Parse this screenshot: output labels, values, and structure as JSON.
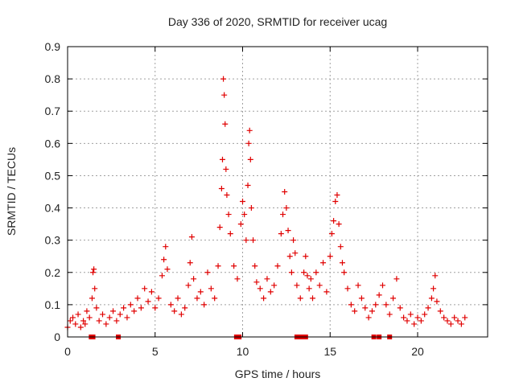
{
  "chart_data": {
    "type": "scatter",
    "title": "Day 336 of 2020, SRMTID for receiver ucag",
    "xlabel": "GPS time / hours",
    "ylabel": "SRMTID / TECUs",
    "xlim": [
      0,
      24
    ],
    "ylim": [
      0,
      0.9
    ],
    "xticks": [
      "0",
      "5",
      "10",
      "15",
      "20"
    ],
    "xtick_values": [
      0,
      5,
      10,
      15,
      20
    ],
    "yticks": [
      "0",
      "0.1",
      "0.2",
      "0.3",
      "0.4",
      "0.5",
      "0.6",
      "0.7",
      "0.8",
      "0.9"
    ],
    "ytick_values": [
      0,
      0.1,
      0.2,
      0.3,
      0.4,
      0.5,
      0.6,
      0.7,
      0.8,
      0.9
    ],
    "grid": true,
    "marker": "+",
    "color": "#e00000",
    "series": [
      {
        "name": "SRMTID",
        "x": [
          0.0,
          0.15,
          0.3,
          0.45,
          0.6,
          0.75,
          0.9,
          1.0,
          1.1,
          1.25,
          1.4,
          1.45,
          1.5,
          1.55,
          1.65,
          1.8,
          2.0,
          2.2,
          2.4,
          2.6,
          2.8,
          3.0,
          3.2,
          3.4,
          3.6,
          3.8,
          4.0,
          4.2,
          4.4,
          4.6,
          4.8,
          5.0,
          5.2,
          5.4,
          5.5,
          5.6,
          5.7,
          5.9,
          6.1,
          6.3,
          6.5,
          6.7,
          6.9,
          7.0,
          7.1,
          7.2,
          7.4,
          7.6,
          7.8,
          8.0,
          8.2,
          8.4,
          8.6,
          8.7,
          8.8,
          8.85,
          8.9,
          8.95,
          9.0,
          9.05,
          9.1,
          9.2,
          9.3,
          9.5,
          9.7,
          9.9,
          10.0,
          10.1,
          10.2,
          10.3,
          10.35,
          10.4,
          10.45,
          10.5,
          10.6,
          10.7,
          10.8,
          11.0,
          11.2,
          11.4,
          11.6,
          11.8,
          12.0,
          12.2,
          12.3,
          12.4,
          12.5,
          12.6,
          12.7,
          12.8,
          12.9,
          13.0,
          13.1,
          13.3,
          13.5,
          13.6,
          13.7,
          13.8,
          13.9,
          14.0,
          14.2,
          14.4,
          14.6,
          14.8,
          15.0,
          15.1,
          15.2,
          15.3,
          15.4,
          15.5,
          15.6,
          15.7,
          15.8,
          16.0,
          16.2,
          16.4,
          16.6,
          16.8,
          17.0,
          17.2,
          17.4,
          17.6,
          17.8,
          18.0,
          18.2,
          18.4,
          18.6,
          18.8,
          19.0,
          19.2,
          19.4,
          19.6,
          19.8,
          20.0,
          20.2,
          20.4,
          20.6,
          20.8,
          20.9,
          21.0,
          21.1,
          21.3,
          21.5,
          21.7,
          21.9,
          22.1,
          22.3,
          22.5,
          22.7
        ],
        "y": [
          0.03,
          0.05,
          0.06,
          0.04,
          0.07,
          0.03,
          0.05,
          0.04,
          0.08,
          0.06,
          0.12,
          0.2,
          0.21,
          0.15,
          0.09,
          0.05,
          0.07,
          0.04,
          0.06,
          0.08,
          0.05,
          0.07,
          0.09,
          0.06,
          0.1,
          0.08,
          0.12,
          0.09,
          0.15,
          0.11,
          0.14,
          0.09,
          0.12,
          0.19,
          0.24,
          0.28,
          0.21,
          0.1,
          0.08,
          0.12,
          0.07,
          0.09,
          0.16,
          0.23,
          0.31,
          0.18,
          0.12,
          0.14,
          0.1,
          0.2,
          0.15,
          0.12,
          0.22,
          0.34,
          0.46,
          0.55,
          0.8,
          0.75,
          0.66,
          0.52,
          0.44,
          0.38,
          0.32,
          0.22,
          0.18,
          0.35,
          0.42,
          0.38,
          0.3,
          0.47,
          0.6,
          0.64,
          0.55,
          0.4,
          0.3,
          0.22,
          0.17,
          0.15,
          0.12,
          0.18,
          0.14,
          0.16,
          0.22,
          0.32,
          0.38,
          0.45,
          0.4,
          0.33,
          0.25,
          0.2,
          0.3,
          0.26,
          0.16,
          0.12,
          0.2,
          0.25,
          0.19,
          0.15,
          0.18,
          0.12,
          0.2,
          0.16,
          0.23,
          0.14,
          0.25,
          0.32,
          0.36,
          0.42,
          0.44,
          0.35,
          0.28,
          0.23,
          0.2,
          0.15,
          0.1,
          0.08,
          0.16,
          0.12,
          0.09,
          0.06,
          0.08,
          0.1,
          0.13,
          0.16,
          0.1,
          0.07,
          0.12,
          0.18,
          0.09,
          0.06,
          0.05,
          0.07,
          0.04,
          0.06,
          0.05,
          0.07,
          0.09,
          0.12,
          0.15,
          0.19,
          0.11,
          0.08,
          0.06,
          0.05,
          0.04,
          0.06,
          0.05,
          0.04,
          0.06
        ],
        "gap_markers_x": [
          1.35,
          1.45,
          2.9,
          9.65,
          9.8,
          13.1,
          13.2,
          13.3,
          13.4,
          13.5,
          13.6,
          17.5,
          17.8,
          18.4
        ]
      }
    ]
  }
}
